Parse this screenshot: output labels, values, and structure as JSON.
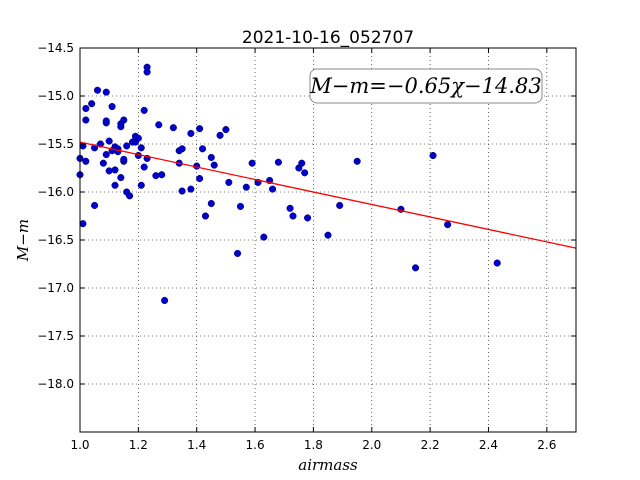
{
  "chart_data": {
    "type": "scatter",
    "title": "2021-10-16_052707",
    "xlabel": "airmass",
    "ylabel": "M−m",
    "xlim": [
      1.0,
      2.7
    ],
    "ylim": [
      -14.5,
      -18.5
    ],
    "y_inverted": true,
    "grid": true,
    "x_ticks": [
      "1.0",
      "1.2",
      "1.4",
      "1.6",
      "1.8",
      "2.0",
      "2.2",
      "2.4",
      "2.6"
    ],
    "y_ticks": [
      "−14.5",
      "−15.0",
      "−15.5",
      "−16.0",
      "−16.5",
      "−17.0",
      "−17.5",
      "−18.0"
    ],
    "annotation": "M−m=−0.65χ−14.83",
    "fit": {
      "slope": -0.65,
      "intercept": -14.83,
      "color": "#ff0000"
    },
    "point_color": "#0000cc",
    "points": [
      [
        1.0,
        -15.65
      ],
      [
        1.0,
        -15.82
      ],
      [
        1.01,
        -16.33
      ],
      [
        1.01,
        -15.52
      ],
      [
        1.02,
        -15.68
      ],
      [
        1.02,
        -15.25
      ],
      [
        1.02,
        -15.13
      ],
      [
        1.04,
        -15.08
      ],
      [
        1.05,
        -16.14
      ],
      [
        1.05,
        -15.54
      ],
      [
        1.06,
        -14.94
      ],
      [
        1.07,
        -15.5
      ],
      [
        1.08,
        -15.7
      ],
      [
        1.09,
        -14.96
      ],
      [
        1.09,
        -15.28
      ],
      [
        1.09,
        -15.26
      ],
      [
        1.09,
        -15.61
      ],
      [
        1.1,
        -15.47
      ],
      [
        1.1,
        -15.78
      ],
      [
        1.11,
        -15.11
      ],
      [
        1.11,
        -15.57
      ],
      [
        1.12,
        -15.53
      ],
      [
        1.12,
        -15.77
      ],
      [
        1.12,
        -15.93
      ],
      [
        1.13,
        -15.55
      ],
      [
        1.13,
        -15.58
      ],
      [
        1.14,
        -15.32
      ],
      [
        1.14,
        -15.29
      ],
      [
        1.14,
        -15.85
      ],
      [
        1.15,
        -15.25
      ],
      [
        1.15,
        -15.68
      ],
      [
        1.15,
        -15.66
      ],
      [
        1.16,
        -15.52
      ],
      [
        1.16,
        -16.0
      ],
      [
        1.17,
        -16.04
      ],
      [
        1.18,
        -15.48
      ],
      [
        1.19,
        -15.48
      ],
      [
        1.19,
        -15.42
      ],
      [
        1.2,
        -15.44
      ],
      [
        1.2,
        -15.62
      ],
      [
        1.21,
        -15.54
      ],
      [
        1.21,
        -15.93
      ],
      [
        1.22,
        -15.74
      ],
      [
        1.22,
        -15.15
      ],
      [
        1.23,
        -15.65
      ],
      [
        1.23,
        -14.7
      ],
      [
        1.23,
        -14.75
      ],
      [
        1.26,
        -15.83
      ],
      [
        1.27,
        -15.3
      ],
      [
        1.28,
        -15.82
      ],
      [
        1.29,
        -17.13
      ],
      [
        1.32,
        -15.33
      ],
      [
        1.34,
        -15.57
      ],
      [
        1.34,
        -15.7
      ],
      [
        1.35,
        -15.55
      ],
      [
        1.35,
        -15.99
      ],
      [
        1.38,
        -15.39
      ],
      [
        1.38,
        -15.97
      ],
      [
        1.4,
        -15.73
      ],
      [
        1.41,
        -15.34
      ],
      [
        1.41,
        -15.86
      ],
      [
        1.42,
        -15.55
      ],
      [
        1.43,
        -16.25
      ],
      [
        1.45,
        -16.12
      ],
      [
        1.45,
        -15.64
      ],
      [
        1.46,
        -15.72
      ],
      [
        1.48,
        -15.41
      ],
      [
        1.5,
        -15.35
      ],
      [
        1.51,
        -15.9
      ],
      [
        1.54,
        -16.64
      ],
      [
        1.55,
        -16.15
      ],
      [
        1.57,
        -15.95
      ],
      [
        1.59,
        -15.7
      ],
      [
        1.61,
        -15.9
      ],
      [
        1.63,
        -16.47
      ],
      [
        1.65,
        -15.88
      ],
      [
        1.66,
        -15.97
      ],
      [
        1.68,
        -15.69
      ],
      [
        1.72,
        -16.17
      ],
      [
        1.73,
        -16.25
      ],
      [
        1.75,
        -15.75
      ],
      [
        1.76,
        -15.7
      ],
      [
        1.77,
        -15.8
      ],
      [
        1.78,
        -16.27
      ],
      [
        1.85,
        -16.45
      ],
      [
        1.89,
        -16.14
      ],
      [
        1.95,
        -15.68
      ],
      [
        2.1,
        -16.18
      ],
      [
        2.15,
        -16.79
      ],
      [
        2.21,
        -15.62
      ],
      [
        2.26,
        -16.34
      ],
      [
        2.43,
        -16.74
      ]
    ]
  }
}
